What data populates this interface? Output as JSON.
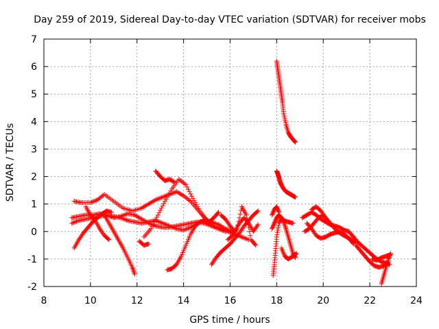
{
  "chart_data": {
    "type": "scatter",
    "title": "Day 259 of 2019, Sidereal Day-to-day VTEC variation (SDTVAR) for receiver mobs",
    "xlabel": "GPS time / hours",
    "ylabel": "SDTVAR / TECUs",
    "xlim": [
      8,
      24
    ],
    "ylim": [
      -2,
      7
    ],
    "xticks": [
      8,
      10,
      12,
      14,
      16,
      18,
      20,
      22,
      24
    ],
    "yticks": [
      -2,
      -1,
      0,
      1,
      2,
      3,
      4,
      5,
      6,
      7
    ],
    "grid": true,
    "marker": "+",
    "color": "#ff0000",
    "series": [
      {
        "name": "s1",
        "x": [
          9.3,
          9.6,
          10.0,
          10.3,
          10.6,
          11.0,
          11.4,
          11.8,
          12.2,
          12.5,
          12.8,
          13.1,
          13.4,
          13.7,
          14.0,
          14.3,
          14.6,
          14.9,
          15.2
        ],
        "y": [
          1.1,
          1.05,
          1.05,
          1.15,
          1.35,
          1.1,
          0.85,
          0.75,
          0.85,
          1.0,
          1.15,
          1.25,
          1.35,
          1.45,
          1.3,
          1.1,
          0.8,
          0.5,
          0.3
        ]
      },
      {
        "name": "s2",
        "x": [
          9.2,
          9.5,
          9.8,
          10.1,
          10.4,
          10.7,
          11.0,
          11.3,
          11.6,
          11.9,
          12.2,
          12.5,
          12.8,
          13.1,
          13.4,
          13.7,
          14.0,
          14.3,
          14.6,
          14.9,
          15.2,
          15.5,
          15.8
        ],
        "y": [
          0.5,
          0.55,
          0.6,
          0.6,
          0.65,
          0.6,
          0.5,
          0.55,
          0.65,
          0.6,
          0.45,
          0.3,
          0.2,
          0.15,
          0.15,
          0.2,
          0.25,
          0.3,
          0.35,
          0.3,
          0.2,
          0.1,
          0.0
        ]
      },
      {
        "name": "s3",
        "x": [
          9.2,
          9.5,
          9.8,
          10.1,
          10.4,
          10.7,
          11.0,
          11.3,
          11.6,
          11.9,
          12.2,
          12.5,
          12.8,
          13.1,
          13.4,
          13.7,
          14.0,
          14.3,
          14.6,
          14.9,
          15.2,
          15.5,
          15.8,
          16.1
        ],
        "y": [
          0.3,
          0.4,
          0.45,
          0.5,
          0.55,
          0.6,
          0.55,
          0.5,
          0.4,
          0.35,
          0.3,
          0.35,
          0.4,
          0.3,
          0.2,
          0.1,
          0.05,
          0.15,
          0.3,
          0.4,
          0.35,
          0.25,
          0.1,
          0.0
        ]
      },
      {
        "name": "s4",
        "x": [
          9.3,
          9.5,
          9.7,
          9.9,
          10.1,
          10.3,
          10.5,
          10.7,
          10.9
        ],
        "y": [
          -0.6,
          -0.3,
          -0.05,
          0.15,
          0.35,
          0.5,
          0.65,
          0.75,
          0.7
        ]
      },
      {
        "name": "s5",
        "x": [
          10.6,
          10.8,
          11.0,
          11.2,
          11.4,
          11.6,
          11.8,
          11.9
        ],
        "y": [
          0.6,
          0.3,
          0.0,
          -0.3,
          -0.6,
          -0.95,
          -1.3,
          -1.55
        ]
      },
      {
        "name": "s6",
        "x": [
          9.8,
          10.0,
          10.2,
          10.4,
          10.6,
          10.8
        ],
        "y": [
          0.9,
          0.6,
          0.4,
          0.1,
          -0.15,
          -0.3
        ]
      },
      {
        "name": "s7",
        "x": [
          12.3,
          12.6,
          12.9,
          13.2,
          13.5,
          13.8,
          14.1,
          14.4,
          14.7,
          15.0,
          15.3,
          15.6,
          15.9,
          16.2,
          16.5,
          16.8
        ],
        "y": [
          -0.2,
          0.1,
          0.6,
          1.1,
          1.55,
          1.9,
          1.7,
          1.2,
          0.75,
          0.4,
          0.2,
          0.1,
          0.0,
          -0.1,
          -0.2,
          -0.3
        ]
      },
      {
        "name": "s8",
        "x": [
          12.8,
          13.0,
          13.2,
          13.4,
          13.6
        ],
        "y": [
          2.2,
          2.0,
          1.85,
          1.9,
          1.8
        ]
      },
      {
        "name": "s9",
        "x": [
          12.1,
          12.3,
          12.5
        ],
        "y": [
          -0.35,
          -0.5,
          -0.45
        ]
      },
      {
        "name": "s10",
        "x": [
          13.3,
          13.5,
          13.7,
          13.9,
          14.1,
          14.3,
          14.5,
          14.7,
          14.9,
          15.1,
          15.3,
          15.5
        ],
        "y": [
          -1.4,
          -1.35,
          -1.2,
          -0.9,
          -0.5,
          -0.1,
          0.2,
          0.35,
          0.4,
          0.35,
          0.5,
          0.7
        ]
      },
      {
        "name": "s11",
        "x": [
          15.2,
          15.4,
          15.6,
          15.8,
          16.0,
          16.2,
          16.4,
          16.6,
          16.8,
          17.0,
          17.2
        ],
        "y": [
          -1.2,
          -0.95,
          -0.75,
          -0.6,
          -0.45,
          -0.25,
          -0.05,
          0.2,
          0.4,
          0.6,
          0.75
        ]
      },
      {
        "name": "s12",
        "x": [
          15.6,
          15.8,
          16.0,
          16.2,
          16.4,
          16.6,
          16.8,
          17.0,
          17.2
        ],
        "y": [
          0.6,
          0.45,
          0.2,
          0.0,
          0.3,
          0.5,
          0.3,
          0.0,
          0.25
        ]
      },
      {
        "name": "s13",
        "x": [
          15.9,
          16.1,
          16.3,
          16.5,
          16.7,
          16.9,
          17.1
        ],
        "y": [
          -0.3,
          -0.15,
          0.1,
          0.9,
          0.6,
          -0.3,
          -0.5
        ]
      },
      {
        "name": "s14",
        "x": [
          17.85,
          17.9,
          17.95,
          18.0,
          18.1,
          18.2,
          18.3,
          18.4,
          18.5,
          18.6,
          18.7,
          18.8
        ],
        "y": [
          -1.6,
          -1.2,
          -0.7,
          -0.2,
          0.3,
          0.5,
          0.35,
          0.1,
          -0.2,
          -0.5,
          -0.8,
          -0.95
        ]
      },
      {
        "name": "s15",
        "x": [
          17.8,
          17.9,
          18.0,
          18.1,
          18.2,
          18.3,
          18.5,
          18.7
        ],
        "y": [
          0.1,
          0.3,
          0.5,
          0.6,
          0.5,
          0.4,
          0.35,
          0.3
        ]
      },
      {
        "name": "s16",
        "x": [
          17.8,
          17.9,
          18.0,
          18.1
        ],
        "y": [
          0.6,
          0.8,
          0.9,
          0.7
        ]
      },
      {
        "name": "s17",
        "x": [
          18.0,
          18.05,
          18.1,
          18.15,
          18.2,
          18.25,
          18.3,
          18.4,
          18.5,
          18.6,
          18.7,
          18.8
        ],
        "y": [
          6.2,
          5.9,
          5.6,
          5.3,
          5.0,
          4.7,
          4.3,
          3.9,
          3.6,
          3.45,
          3.35,
          3.25
        ]
      },
      {
        "name": "s18",
        "x": [
          18.0,
          18.05,
          18.1,
          18.15,
          18.2,
          18.3,
          18.4,
          18.5,
          18.6,
          18.7,
          18.8
        ],
        "y": [
          2.2,
          2.1,
          1.95,
          1.8,
          1.7,
          1.55,
          1.45,
          1.4,
          1.35,
          1.3,
          1.25
        ]
      },
      {
        "name": "s19",
        "x": [
          18.2,
          18.35,
          18.5,
          18.7,
          18.85
        ],
        "y": [
          -0.6,
          -0.9,
          -1.0,
          -0.9,
          -0.8
        ]
      },
      {
        "name": "s20",
        "x": [
          19.1,
          19.3,
          19.5,
          19.7,
          19.9,
          20.1,
          20.3,
          20.5,
          20.7,
          20.9,
          21.1,
          21.3,
          21.5,
          21.7,
          21.9,
          22.1,
          22.3,
          22.5,
          22.7,
          22.85
        ],
        "y": [
          0.5,
          0.6,
          0.7,
          0.6,
          0.45,
          0.35,
          0.25,
          0.2,
          0.15,
          0.05,
          0.0,
          -0.2,
          -0.4,
          -0.55,
          -0.7,
          -0.85,
          -1.0,
          -1.1,
          -1.15,
          -1.2
        ]
      },
      {
        "name": "s21",
        "x": [
          19.2,
          19.4,
          19.6,
          19.8,
          20.0,
          20.2,
          20.4,
          20.6,
          20.8,
          21.0,
          21.2,
          21.4
        ],
        "y": [
          0.0,
          0.1,
          0.3,
          0.5,
          0.6,
          0.4,
          0.2,
          0.0,
          -0.1,
          -0.2,
          -0.3,
          -0.4
        ]
      },
      {
        "name": "s22",
        "x": [
          19.3,
          19.5,
          19.7,
          19.9,
          20.1,
          20.3,
          20.5,
          20.7,
          20.9,
          21.1,
          21.3
        ],
        "y": [
          0.3,
          0.1,
          -0.15,
          -0.25,
          -0.2,
          -0.1,
          -0.05,
          0.0,
          -0.1,
          -0.25,
          -0.45
        ]
      },
      {
        "name": "s23",
        "x": [
          19.5,
          19.7,
          19.9,
          20.1,
          20.3
        ],
        "y": [
          0.8,
          0.9,
          0.75,
          0.5,
          0.3
        ]
      },
      {
        "name": "s24",
        "x": [
          21.4,
          21.6,
          21.8,
          22.0,
          22.2,
          22.4,
          22.6,
          22.8
        ],
        "y": [
          -0.5,
          -0.7,
          -0.9,
          -1.1,
          -1.25,
          -1.3,
          -1.25,
          -1.1
        ]
      },
      {
        "name": "s25",
        "x": [
          22.5,
          22.6,
          22.7,
          22.8,
          22.9
        ],
        "y": [
          -1.9,
          -1.6,
          -1.3,
          -1.0,
          -0.8
        ]
      },
      {
        "name": "s26",
        "x": [
          22.1,
          22.3,
          22.5,
          22.7,
          22.85
        ],
        "y": [
          -1.0,
          -1.05,
          -0.95,
          -0.9,
          -0.85
        ]
      }
    ]
  }
}
